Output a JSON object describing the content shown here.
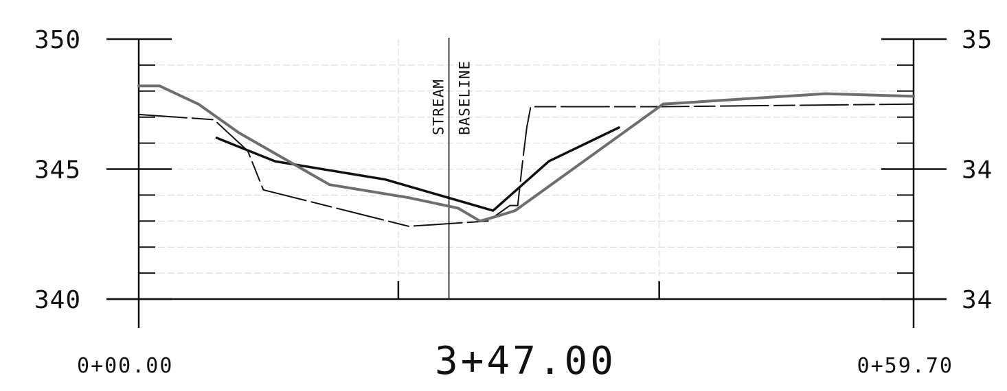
{
  "chart_data": {
    "type": "line",
    "title": "3+47.00",
    "ylim": [
      340,
      350
    ],
    "xlim": [
      0,
      59.7
    ],
    "grid": true,
    "y_ticks": [
      340,
      345,
      350
    ],
    "y_tick_labels_left": [
      "340",
      "345",
      "350"
    ],
    "y_tick_labels_right": [
      "34",
      "34",
      "35"
    ],
    "x_tick_labels": {
      "start": "0+00.00",
      "end": "0+59.70"
    },
    "annotation": {
      "line1": "STREAM",
      "line2": "BASELINE",
      "x": 23.9
    },
    "x_marks": [
      0,
      20.0,
      23.9,
      40.1,
      59.7
    ],
    "series": [
      {
        "style": "thin-dashed",
        "color": "#111111",
        "points": [
          [
            0,
            347.1
          ],
          [
            5.8,
            346.9
          ],
          [
            8.4,
            345.7
          ],
          [
            9.6,
            344.2
          ],
          [
            20.8,
            342.8
          ],
          [
            26.9,
            343.0
          ],
          [
            28.6,
            343.6
          ],
          [
            29.2,
            343.6
          ],
          [
            29.6,
            345.4
          ],
          [
            29.9,
            346.6
          ],
          [
            30.2,
            347.4
          ],
          [
            40.1,
            347.4
          ],
          [
            59.7,
            347.5
          ]
        ]
      },
      {
        "style": "thick-solid",
        "color": "#111111",
        "points": [
          [
            6.0,
            346.2
          ],
          [
            10.5,
            345.3
          ],
          [
            19.0,
            344.6
          ],
          [
            27.3,
            343.4
          ],
          [
            31.6,
            345.3
          ],
          [
            37.0,
            346.6
          ]
        ]
      },
      {
        "style": "survey",
        "color": "#6e6e6e",
        "points": [
          [
            0,
            348.2
          ],
          [
            1.6,
            348.2
          ],
          [
            4.6,
            347.5
          ],
          [
            7.7,
            346.4
          ],
          [
            14.7,
            344.4
          ],
          [
            20.8,
            343.9
          ],
          [
            24.6,
            343.5
          ],
          [
            26.3,
            343.0
          ],
          [
            27.7,
            343.2
          ],
          [
            29.0,
            343.4
          ],
          [
            40.4,
            347.5
          ],
          [
            52.9,
            347.9
          ],
          [
            59.7,
            347.8
          ]
        ]
      }
    ]
  }
}
